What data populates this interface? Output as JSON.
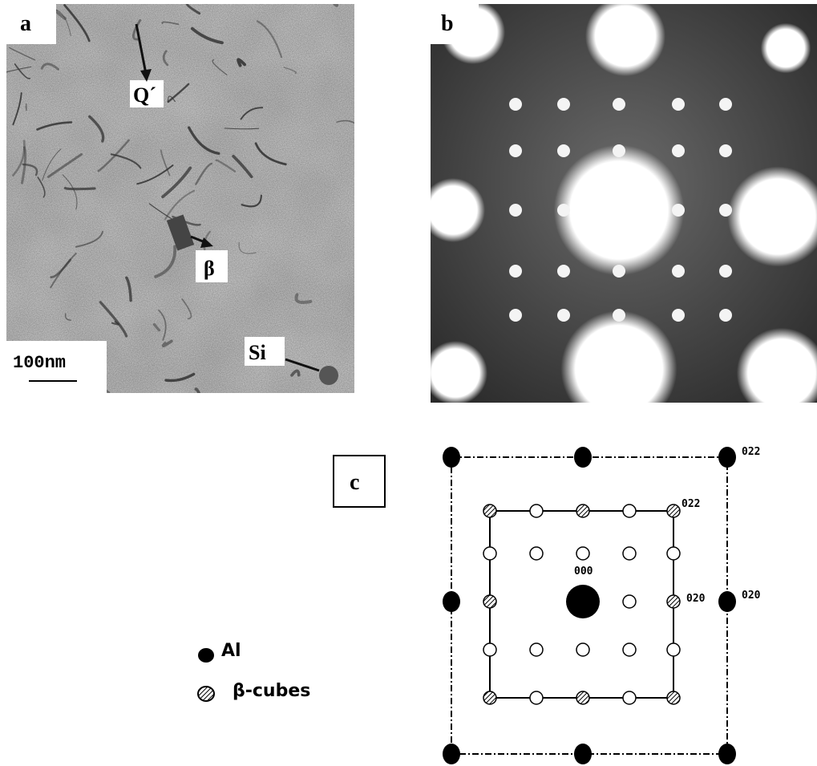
{
  "panels": {
    "a": {
      "label": "a",
      "annotations": {
        "q_prime": "Q´",
        "beta": "β",
        "si": "Si"
      },
      "scale_bar": "100nm"
    },
    "b": {
      "label": "b"
    },
    "c": {
      "label": "c",
      "indices": [
        "022",
        "022",
        "000",
        "020",
        "020"
      ],
      "legend": [
        "Al",
        "β-cubes"
      ]
    }
  }
}
